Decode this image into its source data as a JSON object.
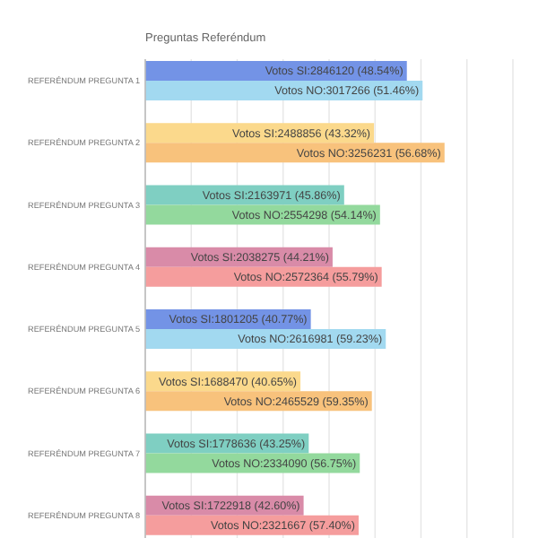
{
  "chart_data": {
    "type": "bar",
    "orientation": "horizontal",
    "title": "Preguntas Referéndum",
    "categories": [
      "REFERÉNDUM PREGUNTA 1",
      "REFERÉNDUM PREGUNTA 2",
      "REFERÉNDUM PREGUNTA 3",
      "REFERÉNDUM PREGUNTA 4",
      "REFERÉNDUM PREGUNTA 5",
      "REFERÉNDUM PREGUNTA 6",
      "REFERÉNDUM PREGUNTA 7",
      "REFERÉNDUM PREGUNTA 8"
    ],
    "series": [
      {
        "values": [
          2846120,
          2488856,
          2163971,
          2038275,
          1801205,
          1688470,
          1778636,
          1722918
        ],
        "colors": [
          "#7393e6",
          "#fbd98c",
          "#7fcfc2",
          "#d98ba8",
          "#7393e6",
          "#fbd98c",
          "#7fcfc2",
          "#d98ba8"
        ],
        "value_labels": [
          "Votos SI:2846120 (48.54%)",
          "Votos SI:2488856 (43.32%)",
          "Votos SI:2163971 (45.86%)",
          "Votos SI:2038275 (44.21%)",
          "Votos SI:1801205 (40.77%)",
          "Votos SI:1688470 (40.65%)",
          "Votos SI:1778636 (43.25%)",
          "Votos SI:1722918 (42.60%)"
        ]
      },
      {
        "values": [
          3017266,
          3256231,
          2554298,
          2572364,
          2616981,
          2465529,
          2334090,
          2321667
        ],
        "colors": [
          "#a2d9f0",
          "#f8c27c",
          "#93d99d",
          "#f59d9d",
          "#a2d9f0",
          "#f8c27c",
          "#93d99d",
          "#f59d9d"
        ],
        "value_labels": [
          "Votos NO:3017266 (51.46%)",
          "Votos NO:3256231 (56.68%)",
          "Votos NO:2554298 (54.14%)",
          "Votos NO:2572364 (55.79%)",
          "Votos NO:2616981 (59.23%)",
          "Votos NO:2465529 (59.35%)",
          "Votos NO:2334090 (56.75%)",
          "Votos NO:2321667 (57.40%)"
        ]
      }
    ],
    "xlim": [
      0,
      4000000
    ],
    "xticks": [
      {
        "value": 0,
        "label": null
      },
      {
        "value": 500000,
        "label": null
      },
      {
        "value": 1000000,
        "label": null
      },
      {
        "value": 1500000,
        "label": null
      },
      {
        "value": 2000000,
        "label": null
      },
      {
        "value": 2500000,
        "label": null
      },
      {
        "value": 3000000,
        "label": null
      },
      {
        "value": 3500000,
        "label": null
      },
      {
        "value": 4000000,
        "label": null
      }
    ],
    "grid": "x",
    "tick_labels": "y"
  }
}
